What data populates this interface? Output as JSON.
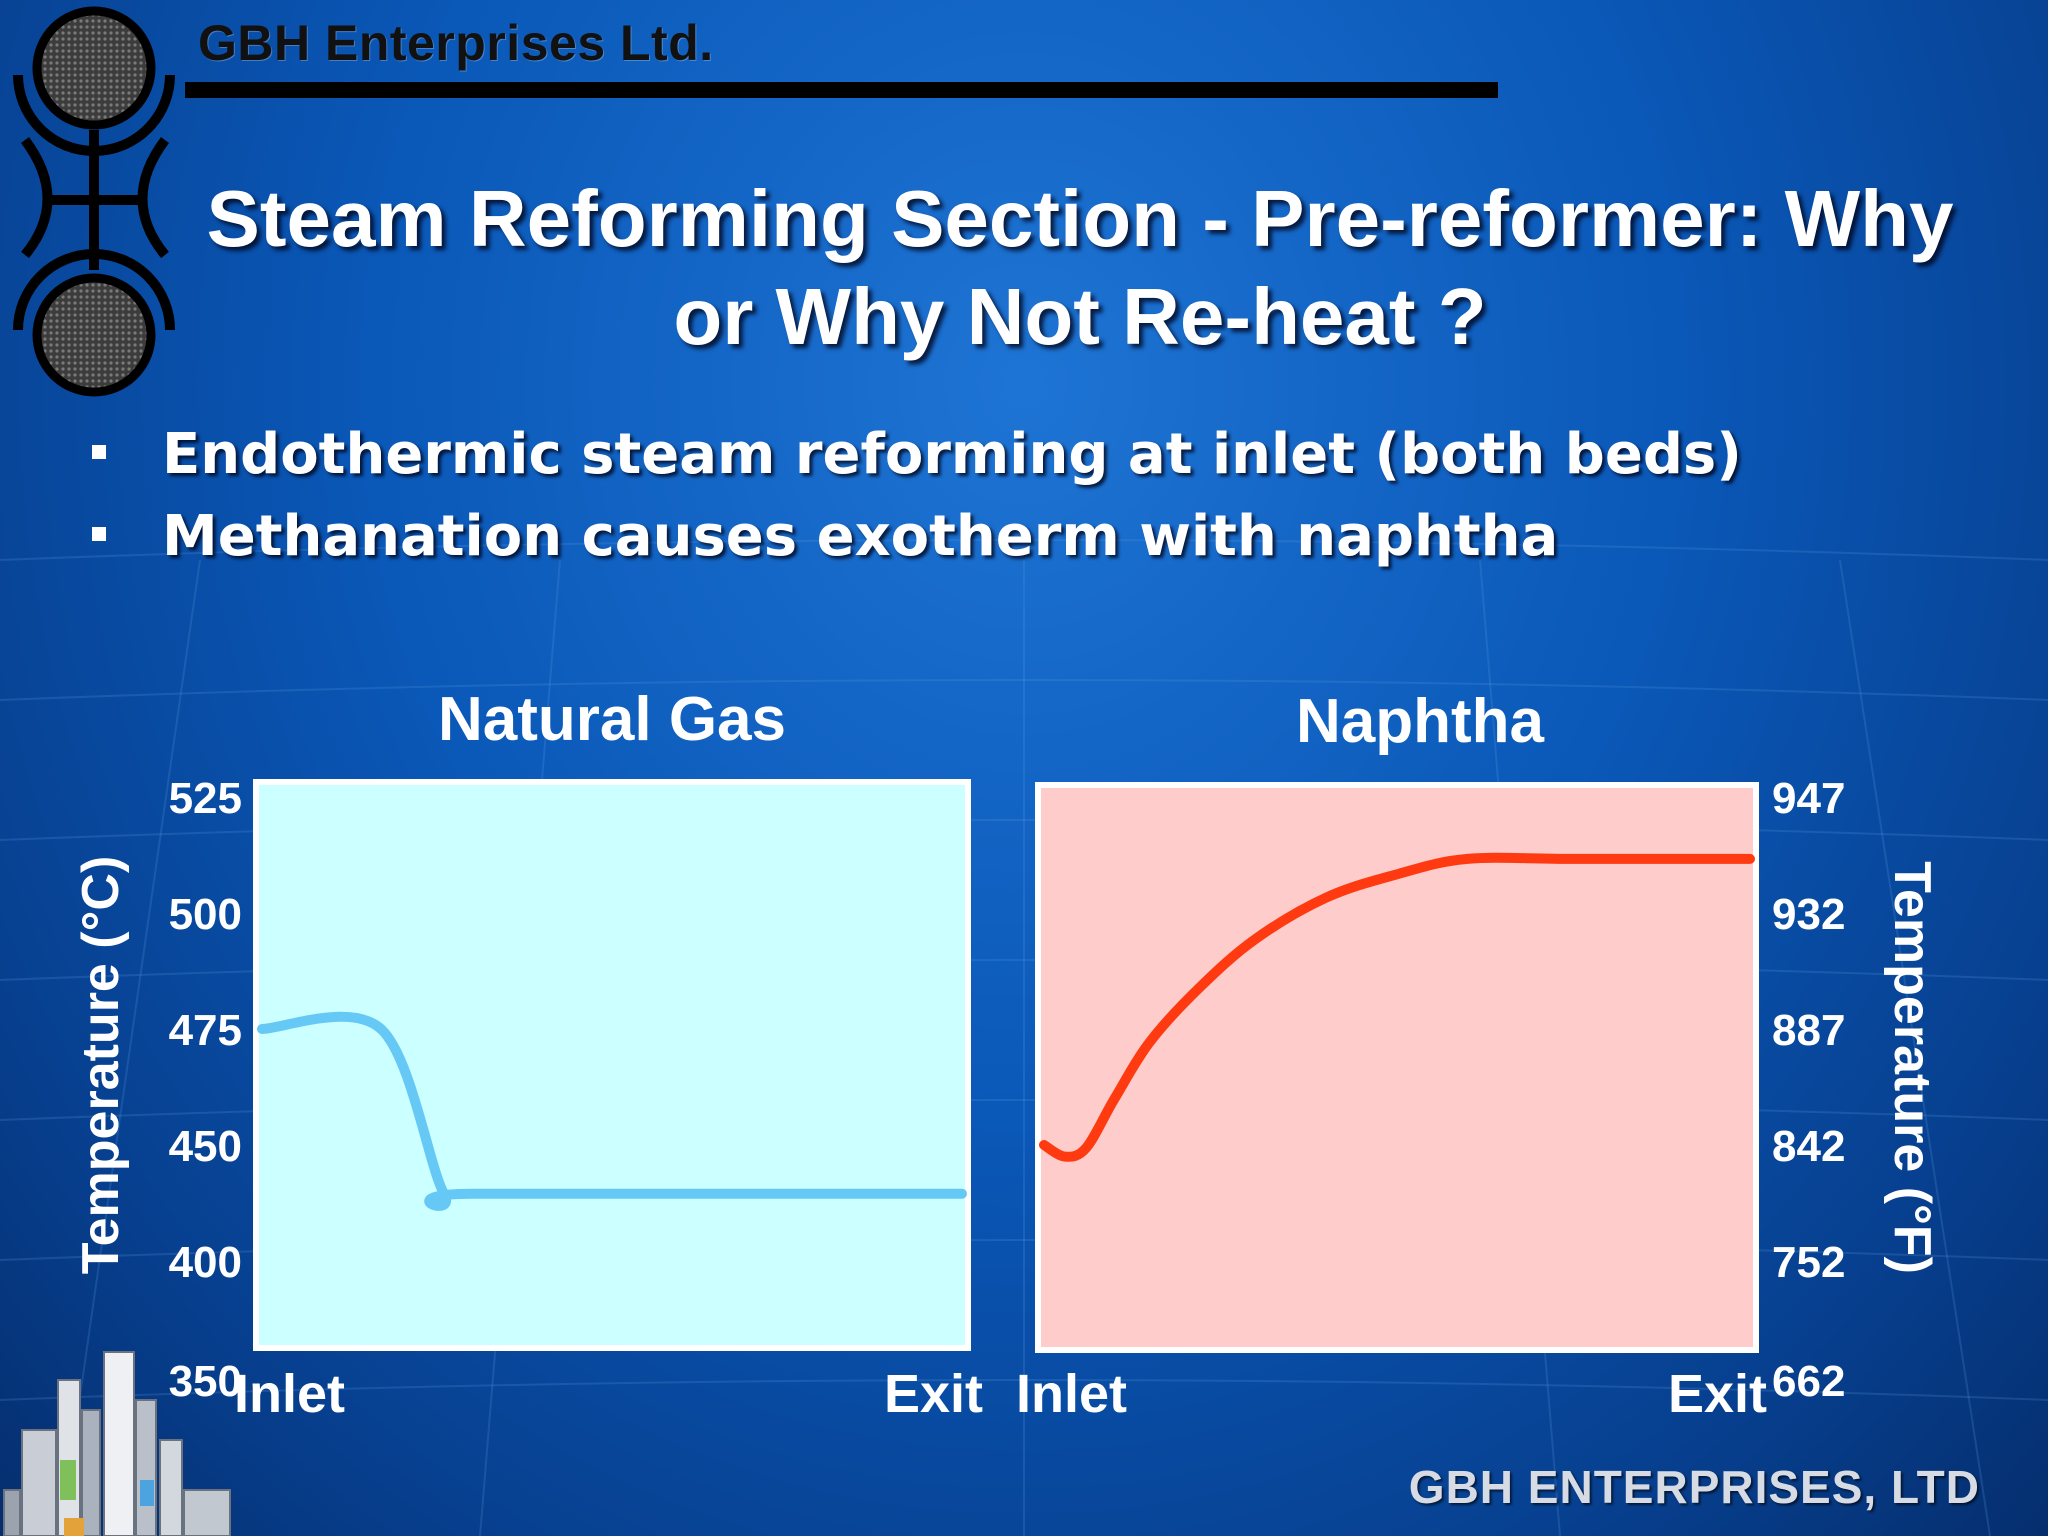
{
  "header": {
    "brand": "GBH Enterprises Ltd.",
    "title_line1": "Steam Reforming Section - Pre-reformer: Why",
    "title_line2": "or Why Not Re-heat ?"
  },
  "bullets": [
    "Endothermic steam reforming at inlet (both beds)",
    "Methanation causes exotherm with naphtha"
  ],
  "footer": {
    "brand": "GBH ENTERPRISES, LTD"
  },
  "icons": {
    "logo": "gbh-logo-icon",
    "refinery": "refinery-illustration-icon"
  },
  "colors": {
    "natural_gas_line": "#66c8f5",
    "natural_gas_panel": "#ccffff",
    "naphtha_line": "#ff3a10",
    "naphtha_panel": "#ffcccc"
  },
  "chart_data": [
    {
      "type": "line",
      "title": "Natural Gas",
      "ylabel": "Temperature (°C)",
      "yticks": [
        "525",
        "500",
        "475",
        "450",
        "400",
        "350"
      ],
      "xticks": [
        "Inlet",
        "Exit"
      ],
      "x_range": [
        0,
        1
      ],
      "series": [
        {
          "x": [
            0,
            0.17,
            0.26,
            0.3,
            1
          ],
          "y": [
            475,
            475,
            429,
            429,
            429
          ]
        }
      ]
    },
    {
      "type": "line",
      "title": "Naphtha",
      "ylabel": "Temperature (°F)",
      "yticks": [
        "947",
        "932",
        "887",
        "842",
        "752",
        "662"
      ],
      "xticks": [
        "Inlet",
        "Exit"
      ],
      "x_range": [
        0,
        1
      ],
      "series": [
        {
          "x": [
            0,
            0.03,
            0.06,
            0.1,
            0.15,
            0.22,
            0.3,
            0.4,
            0.5,
            0.6,
            0.75,
            1
          ],
          "y": [
            842,
            833,
            840,
            860,
            882,
            903,
            922,
            934,
            937,
            939,
            939,
            939
          ]
        }
      ]
    }
  ]
}
